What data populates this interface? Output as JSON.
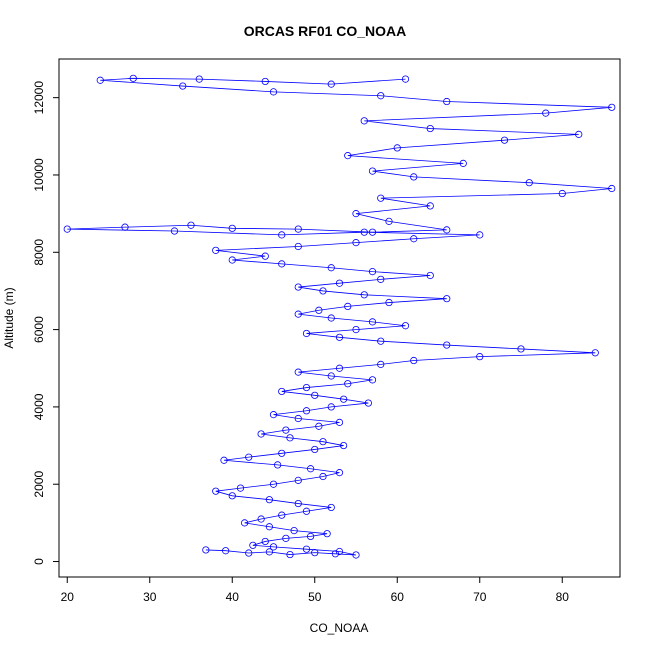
{
  "chart_data": {
    "type": "line",
    "title": "ORCAS RF01 CO_NOAA",
    "xlabel": "CO_NOAA",
    "ylabel": "Altitude (m)",
    "xlim": [
      19,
      87
    ],
    "ylim": [
      -400,
      13000
    ],
    "xticks": [
      20,
      30,
      40,
      50,
      60,
      70,
      80
    ],
    "yticks": [
      0,
      2000,
      4000,
      6000,
      8000,
      10000,
      12000
    ],
    "grid": false,
    "legend": "none",
    "series_color": "#0000ff",
    "marker": "open-circle",
    "series": [
      {
        "values": [
          [
            36.8,
            300
          ],
          [
            39.2,
            280
          ],
          [
            42.0,
            220
          ],
          [
            44.5,
            250
          ],
          [
            47.0,
            180
          ],
          [
            50.0,
            230
          ],
          [
            52.5,
            200
          ],
          [
            55.0,
            170
          ],
          [
            53.0,
            260
          ],
          [
            49.0,
            320
          ],
          [
            45.0,
            380
          ],
          [
            42.5,
            420
          ],
          [
            44.0,
            520
          ],
          [
            46.5,
            600
          ],
          [
            49.5,
            650
          ],
          [
            51.5,
            720
          ],
          [
            47.5,
            800
          ],
          [
            44.5,
            900
          ],
          [
            41.5,
            1000
          ],
          [
            43.5,
            1100
          ],
          [
            46.0,
            1200
          ],
          [
            49.0,
            1300
          ],
          [
            52.0,
            1400
          ],
          [
            48.0,
            1500
          ],
          [
            44.5,
            1600
          ],
          [
            40.0,
            1700
          ],
          [
            38.0,
            1820
          ],
          [
            41.0,
            1900
          ],
          [
            45.0,
            2000
          ],
          [
            48.0,
            2100
          ],
          [
            51.0,
            2200
          ],
          [
            53.0,
            2300
          ],
          [
            49.5,
            2400
          ],
          [
            45.5,
            2500
          ],
          [
            39.0,
            2620
          ],
          [
            42.0,
            2700
          ],
          [
            46.0,
            2800
          ],
          [
            50.0,
            2900
          ],
          [
            53.5,
            3000
          ],
          [
            51.0,
            3100
          ],
          [
            47.0,
            3200
          ],
          [
            43.5,
            3300
          ],
          [
            46.5,
            3400
          ],
          [
            50.5,
            3500
          ],
          [
            53.0,
            3600
          ],
          [
            48.0,
            3700
          ],
          [
            45.0,
            3800
          ],
          [
            49.0,
            3900
          ],
          [
            52.0,
            4000
          ],
          [
            56.5,
            4100
          ],
          [
            53.5,
            4200
          ],
          [
            50.0,
            4300
          ],
          [
            46.0,
            4400
          ],
          [
            49.0,
            4500
          ],
          [
            54.0,
            4600
          ],
          [
            57.0,
            4700
          ],
          [
            52.0,
            4800
          ],
          [
            48.0,
            4900
          ],
          [
            53.0,
            5000
          ],
          [
            58.0,
            5100
          ],
          [
            62.0,
            5200
          ],
          [
            70.0,
            5300
          ],
          [
            84.0,
            5400
          ],
          [
            75.0,
            5500
          ],
          [
            66.0,
            5600
          ],
          [
            58.0,
            5700
          ],
          [
            53.0,
            5800
          ],
          [
            49.0,
            5900
          ],
          [
            55.0,
            6000
          ],
          [
            61.0,
            6100
          ],
          [
            57.0,
            6200
          ],
          [
            52.0,
            6300
          ],
          [
            48.0,
            6400
          ],
          [
            50.5,
            6500
          ],
          [
            54.0,
            6600
          ],
          [
            59.0,
            6700
          ],
          [
            66.0,
            6800
          ],
          [
            56.0,
            6900
          ],
          [
            51.0,
            7000
          ],
          [
            48.0,
            7100
          ],
          [
            53.0,
            7200
          ],
          [
            58.0,
            7300
          ],
          [
            64.0,
            7400
          ],
          [
            57.0,
            7500
          ],
          [
            52.0,
            7600
          ],
          [
            46.0,
            7700
          ],
          [
            40.0,
            7800
          ],
          [
            44.0,
            7900
          ],
          [
            38.0,
            8050
          ],
          [
            48.0,
            8150
          ],
          [
            55.0,
            8250
          ],
          [
            62.0,
            8350
          ],
          [
            70.0,
            8450
          ],
          [
            56.0,
            8520
          ],
          [
            46.0,
            8450
          ],
          [
            33.0,
            8550
          ],
          [
            20.0,
            8600
          ],
          [
            27.0,
            8650
          ],
          [
            35.0,
            8700
          ],
          [
            40.0,
            8620
          ],
          [
            48.0,
            8600
          ],
          [
            57.0,
            8520
          ],
          [
            66.0,
            8580
          ],
          [
            59.0,
            8800
          ],
          [
            55.0,
            9000
          ],
          [
            64.0,
            9200
          ],
          [
            58.0,
            9400
          ],
          [
            80.0,
            9520
          ],
          [
            86.0,
            9650
          ],
          [
            76.0,
            9800
          ],
          [
            62.0,
            9950
          ],
          [
            57.0,
            10100
          ],
          [
            68.0,
            10300
          ],
          [
            54.0,
            10500
          ],
          [
            60.0,
            10700
          ],
          [
            73.0,
            10900
          ],
          [
            82.0,
            11050
          ],
          [
            64.0,
            11200
          ],
          [
            56.0,
            11400
          ],
          [
            78.0,
            11600
          ],
          [
            86.0,
            11750
          ],
          [
            66.0,
            11900
          ],
          [
            58.0,
            12050
          ],
          [
            45.0,
            12150
          ],
          [
            34.0,
            12300
          ],
          [
            24.0,
            12450
          ],
          [
            28.0,
            12500
          ],
          [
            36.0,
            12480
          ],
          [
            44.0,
            12420
          ],
          [
            52.0,
            12350
          ],
          [
            61.0,
            12480
          ]
        ]
      }
    ]
  }
}
